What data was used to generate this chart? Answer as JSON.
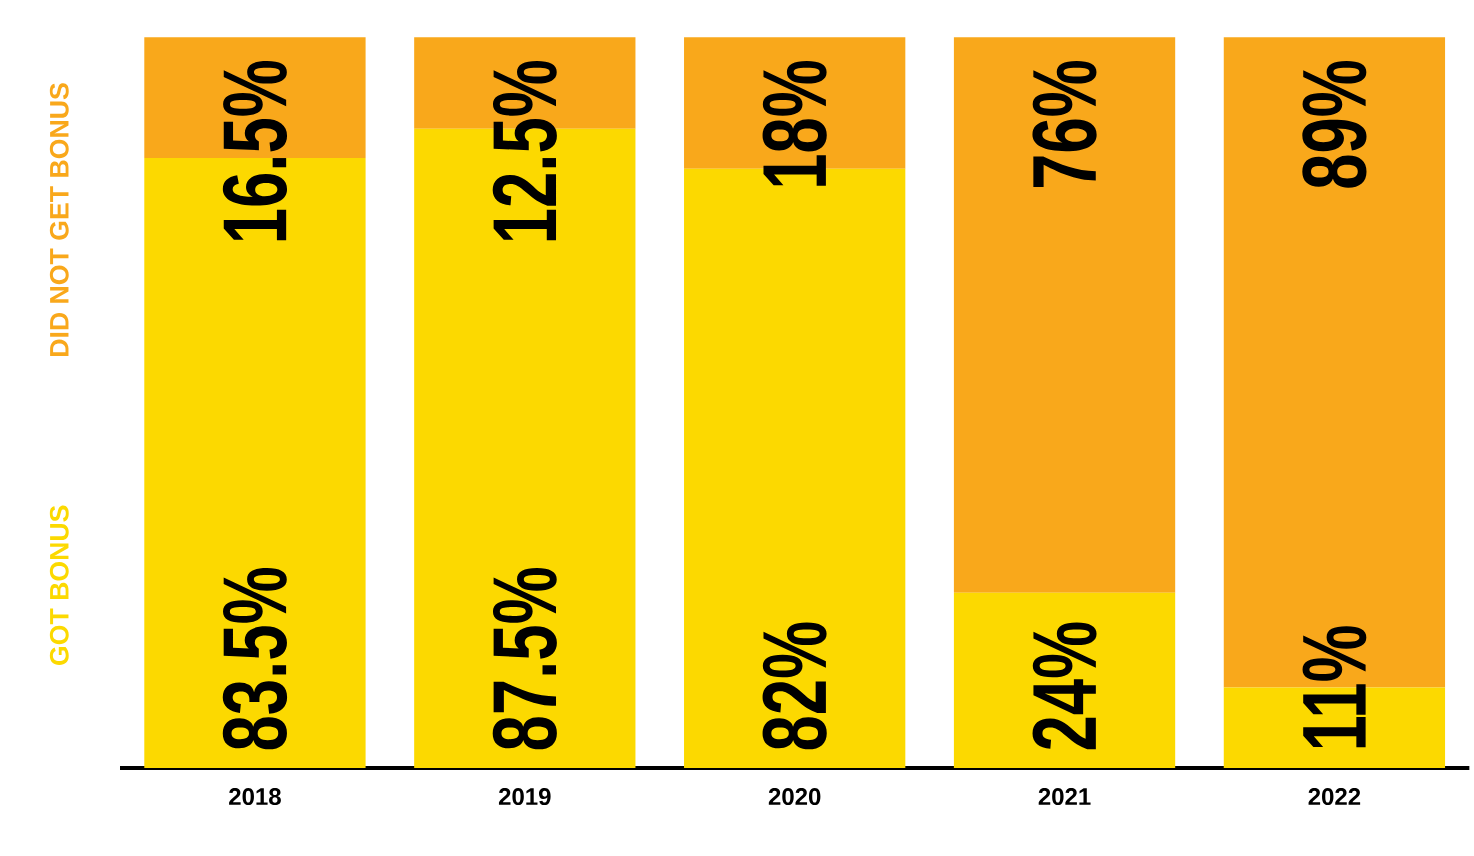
{
  "chart_data": {
    "type": "bar",
    "stacked": true,
    "categories": [
      "2018",
      "2019",
      "2020",
      "2021",
      "2022"
    ],
    "series": [
      {
        "name": "GOT BONUS",
        "color": "#fcd900",
        "values": [
          83.5,
          87.5,
          82,
          24,
          11
        ],
        "value_labels": [
          "83.5%",
          "87.5%",
          "82%",
          "24%",
          "11%"
        ]
      },
      {
        "name": "DID NOT GET BONUS",
        "color": "#f9a81b",
        "values": [
          16.5,
          12.5,
          18,
          76,
          89
        ],
        "value_labels": [
          "16.5%",
          "12.5%",
          "18%",
          "76%",
          "89%"
        ]
      }
    ],
    "legend": "left",
    "ylim": [
      0,
      100
    ]
  }
}
